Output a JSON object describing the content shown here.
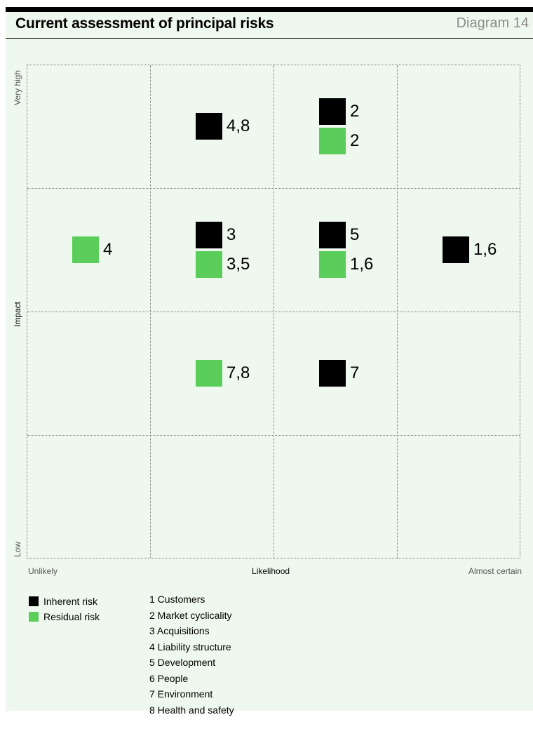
{
  "header": {
    "title": "Current assessment of principal risks",
    "diagram_label": "Diagram 14"
  },
  "axes": {
    "y_title": "Impact",
    "y_high": "Very high",
    "y_low": "Low",
    "x_title": "Likelihood",
    "x_low": "Unlikely",
    "x_high": "Almost certain"
  },
  "grid": {
    "columns": 4,
    "rows": 4
  },
  "markers": [
    {
      "type": "inherent",
      "label": "4,8",
      "likelihood_col": 2,
      "impact_row": 1
    },
    {
      "type": "inherent",
      "label": "2",
      "likelihood_col": 3,
      "impact_row": 1
    },
    {
      "type": "residual",
      "label": "2",
      "likelihood_col": 3,
      "impact_row": 1
    },
    {
      "type": "residual",
      "label": "4",
      "likelihood_col": 1,
      "impact_row": 2
    },
    {
      "type": "inherent",
      "label": "3",
      "likelihood_col": 2,
      "impact_row": 2
    },
    {
      "type": "residual",
      "label": "3,5",
      "likelihood_col": 2,
      "impact_row": 2
    },
    {
      "type": "inherent",
      "label": "5",
      "likelihood_col": 3,
      "impact_row": 2
    },
    {
      "type": "residual",
      "label": "1,6",
      "likelihood_col": 3,
      "impact_row": 2
    },
    {
      "type": "inherent",
      "label": "1,6",
      "likelihood_col": 4,
      "impact_row": 2
    },
    {
      "type": "residual",
      "label": "7,8",
      "likelihood_col": 2,
      "impact_row": 3
    },
    {
      "type": "inherent",
      "label": "7",
      "likelihood_col": 3,
      "impact_row": 3
    }
  ],
  "legend": {
    "inherent_label": "Inherent risk",
    "residual_label": "Residual risk",
    "inherent_color": "#000000",
    "residual_color": "#5acd5a"
  },
  "risks": [
    "1 Customers",
    "2 Market cyclicality",
    "3 Acquisitions",
    "4 Liability structure",
    "5 Development",
    "6 People",
    "7 Environment",
    "8 Health and safety"
  ]
}
